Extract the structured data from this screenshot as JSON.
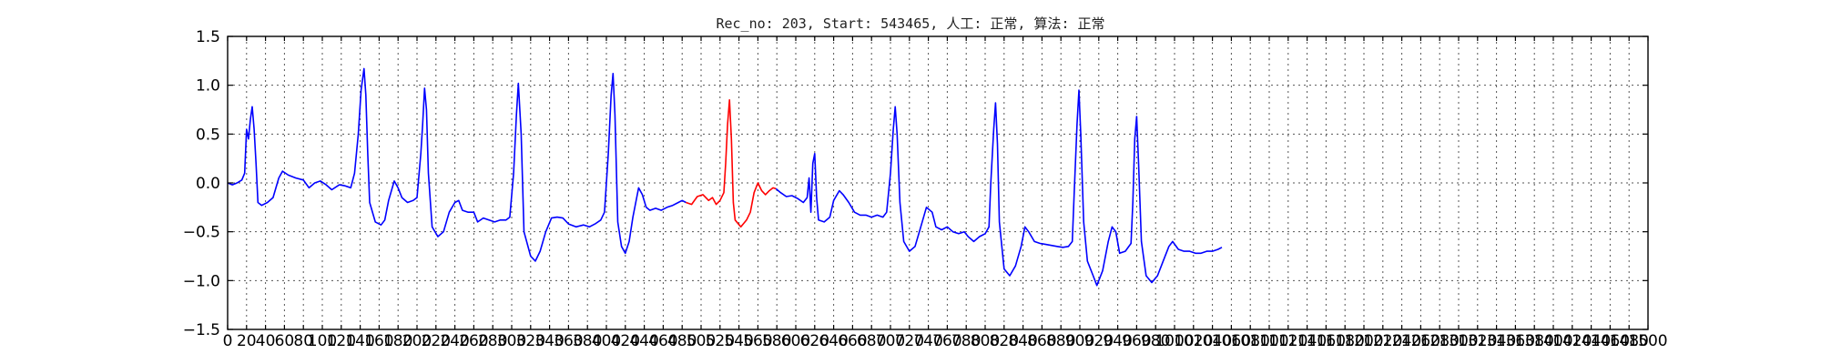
{
  "chart_data": {
    "type": "line",
    "title": "Rec_no: 203, Start: 543465, 人工: 正常, 算法: 正常",
    "xlabel": "",
    "ylabel": "",
    "xlim": [
      0,
      1500
    ],
    "ylim": [
      -1.5,
      1.5
    ],
    "grid": true,
    "xticks": [
      0,
      20,
      40,
      60,
      80,
      100,
      120,
      140,
      160,
      180,
      200,
      220,
      240,
      260,
      280,
      300,
      320,
      340,
      360,
      380,
      400,
      420,
      440,
      460,
      480,
      500,
      520,
      540,
      560,
      580,
      600,
      620,
      640,
      660,
      680,
      700,
      720,
      740,
      760,
      780,
      800,
      820,
      840,
      860,
      880,
      900,
      920,
      940,
      960,
      980,
      1000,
      1020,
      1040,
      1060,
      1080,
      1100,
      1120,
      1140,
      1160,
      1180,
      1200,
      1220,
      1240,
      1260,
      1280,
      1300,
      1320,
      1340,
      1360,
      1380,
      1400,
      1420,
      1440,
      1460,
      1480,
      1500
    ],
    "xtick_labels": [
      "0",
      "20",
      "40",
      "60",
      "80",
      "100",
      "120",
      "140",
      "160",
      "180",
      "200",
      "220",
      "240",
      "260",
      "280",
      "300",
      "320",
      "340",
      "360",
      "380",
      "400",
      "420",
      "440",
      "460",
      "480",
      "500",
      "520",
      "540",
      "560",
      "580",
      "600",
      "620",
      "640",
      "660",
      "680",
      "700",
      "720",
      "740",
      "760",
      "780",
      "800",
      "820",
      "840",
      "860",
      "880",
      "900",
      "920",
      "940",
      "960",
      "980",
      "1000",
      "1020",
      "1040",
      "1060",
      "1080",
      "1100",
      "1120",
      "1140",
      "1160",
      "1180",
      "1200",
      "1220",
      "1240",
      "1260",
      "1280",
      "1300",
      "1320",
      "1340",
      "1360",
      "1380",
      "1400",
      "1420",
      "1440",
      "1460",
      "1480",
      "1500"
    ],
    "yticks": [
      -1.5,
      -1.0,
      -0.5,
      0.0,
      0.5,
      1.0,
      1.5
    ],
    "ytick_labels": [
      "−1.5",
      "−1.0",
      "−0.5",
      "0.0",
      "0.5",
      "1.0",
      "1.5"
    ],
    "series": [
      {
        "color": "#0000ff",
        "points": [
          [
            0,
            0.0
          ],
          [
            5,
            -0.02
          ],
          [
            10,
            0.0
          ],
          [
            15,
            0.03
          ],
          [
            18,
            0.1
          ],
          [
            20,
            0.55
          ],
          [
            22,
            0.45
          ],
          [
            24,
            0.65
          ],
          [
            26,
            0.78
          ],
          [
            28,
            0.55
          ],
          [
            30,
            0.2
          ],
          [
            32,
            -0.2
          ],
          [
            36,
            -0.23
          ],
          [
            42,
            -0.2
          ],
          [
            48,
            -0.15
          ],
          [
            54,
            0.05
          ],
          [
            58,
            0.12
          ],
          [
            64,
            0.08
          ],
          [
            72,
            0.05
          ],
          [
            80,
            0.03
          ],
          [
            86,
            -0.05
          ],
          [
            92,
            0.0
          ],
          [
            98,
            0.02
          ],
          [
            104,
            -0.02
          ],
          [
            110,
            -0.07
          ],
          [
            118,
            -0.02
          ],
          [
            124,
            -0.03
          ],
          [
            130,
            -0.05
          ],
          [
            134,
            0.1
          ],
          [
            138,
            0.5
          ],
          [
            141,
            0.95
          ],
          [
            144,
            1.17
          ],
          [
            146,
            0.9
          ],
          [
            148,
            0.3
          ],
          [
            150,
            -0.2
          ],
          [
            156,
            -0.4
          ],
          [
            162,
            -0.43
          ],
          [
            166,
            -0.38
          ],
          [
            170,
            -0.18
          ],
          [
            176,
            0.02
          ],
          [
            180,
            -0.05
          ],
          [
            184,
            -0.15
          ],
          [
            190,
            -0.2
          ],
          [
            196,
            -0.18
          ],
          [
            200,
            -0.15
          ],
          [
            204,
            0.3
          ],
          [
            206,
            0.6
          ],
          [
            208,
            0.97
          ],
          [
            210,
            0.75
          ],
          [
            212,
            0.1
          ],
          [
            216,
            -0.45
          ],
          [
            222,
            -0.55
          ],
          [
            228,
            -0.5
          ],
          [
            234,
            -0.3
          ],
          [
            240,
            -0.2
          ],
          [
            244,
            -0.18
          ],
          [
            248,
            -0.28
          ],
          [
            254,
            -0.3
          ],
          [
            260,
            -0.3
          ],
          [
            264,
            -0.4
          ],
          [
            270,
            -0.36
          ],
          [
            276,
            -0.38
          ],
          [
            282,
            -0.4
          ],
          [
            288,
            -0.38
          ],
          [
            294,
            -0.38
          ],
          [
            298,
            -0.35
          ],
          [
            302,
            0.1
          ],
          [
            305,
            0.7
          ],
          [
            307,
            1.02
          ],
          [
            310,
            0.5
          ],
          [
            313,
            -0.5
          ],
          [
            320,
            -0.75
          ],
          [
            325,
            -0.8
          ],
          [
            330,
            -0.7
          ],
          [
            336,
            -0.5
          ],
          [
            342,
            -0.36
          ],
          [
            348,
            -0.35
          ],
          [
            354,
            -0.36
          ],
          [
            360,
            -0.42
          ],
          [
            368,
            -0.45
          ],
          [
            376,
            -0.43
          ],
          [
            382,
            -0.45
          ],
          [
            388,
            -0.42
          ],
          [
            394,
            -0.38
          ],
          [
            398,
            -0.3
          ],
          [
            402,
            0.3
          ],
          [
            405,
            0.9
          ],
          [
            407,
            1.12
          ],
          [
            409,
            0.7
          ],
          [
            412,
            -0.4
          ],
          [
            416,
            -0.65
          ],
          [
            420,
            -0.72
          ],
          [
            424,
            -0.6
          ],
          [
            428,
            -0.35
          ],
          [
            434,
            -0.05
          ],
          [
            438,
            -0.12
          ],
          [
            442,
            -0.25
          ],
          [
            446,
            -0.28
          ],
          [
            452,
            -0.26
          ],
          [
            458,
            -0.28
          ],
          [
            464,
            -0.25
          ],
          [
            470,
            -0.23
          ],
          [
            476,
            -0.2
          ],
          [
            480,
            -0.18
          ],
          [
            484,
            -0.2
          ]
        ]
      },
      {
        "color": "#ff0000",
        "points": [
          [
            484,
            -0.2
          ],
          [
            490,
            -0.22
          ],
          [
            496,
            -0.14
          ],
          [
            502,
            -0.12
          ],
          [
            508,
            -0.18
          ],
          [
            512,
            -0.15
          ],
          [
            516,
            -0.22
          ],
          [
            520,
            -0.18
          ],
          [
            524,
            -0.1
          ],
          [
            526,
            0.2
          ],
          [
            528,
            0.6
          ],
          [
            530,
            0.85
          ],
          [
            532,
            0.45
          ],
          [
            534,
            -0.2
          ],
          [
            536,
            -0.38
          ],
          [
            542,
            -0.45
          ],
          [
            548,
            -0.38
          ],
          [
            552,
            -0.3
          ],
          [
            556,
            -0.1
          ],
          [
            560,
            0.0
          ],
          [
            564,
            -0.08
          ],
          [
            568,
            -0.12
          ],
          [
            572,
            -0.08
          ],
          [
            576,
            -0.05
          ],
          [
            579,
            -0.06
          ]
        ]
      },
      {
        "color": "#0000ff",
        "points": [
          [
            579,
            -0.06
          ],
          [
            584,
            -0.1
          ],
          [
            590,
            -0.14
          ],
          [
            596,
            -0.13
          ],
          [
            602,
            -0.16
          ],
          [
            608,
            -0.2
          ],
          [
            612,
            -0.15
          ],
          [
            614,
            0.05
          ],
          [
            616,
            -0.3
          ],
          [
            618,
            0.2
          ],
          [
            620,
            0.3
          ],
          [
            622,
            -0.15
          ],
          [
            624,
            -0.38
          ],
          [
            630,
            -0.4
          ],
          [
            636,
            -0.35
          ],
          [
            640,
            -0.18
          ],
          [
            646,
            -0.08
          ],
          [
            650,
            -0.12
          ],
          [
            656,
            -0.2
          ],
          [
            662,
            -0.3
          ],
          [
            668,
            -0.33
          ],
          [
            674,
            -0.33
          ],
          [
            680,
            -0.35
          ],
          [
            686,
            -0.33
          ],
          [
            692,
            -0.35
          ],
          [
            696,
            -0.3
          ],
          [
            700,
            0.1
          ],
          [
            703,
            0.55
          ],
          [
            705,
            0.78
          ],
          [
            707,
            0.5
          ],
          [
            710,
            -0.2
          ],
          [
            714,
            -0.6
          ],
          [
            720,
            -0.7
          ],
          [
            726,
            -0.65
          ],
          [
            732,
            -0.45
          ],
          [
            738,
            -0.25
          ],
          [
            744,
            -0.3
          ],
          [
            748,
            -0.45
          ],
          [
            754,
            -0.48
          ],
          [
            760,
            -0.45
          ],
          [
            766,
            -0.5
          ],
          [
            772,
            -0.52
          ],
          [
            778,
            -0.5
          ],
          [
            782,
            -0.55
          ],
          [
            788,
            -0.6
          ],
          [
            794,
            -0.55
          ],
          [
            800,
            -0.52
          ],
          [
            804,
            -0.45
          ],
          [
            806,
            0.0
          ],
          [
            809,
            0.55
          ],
          [
            811,
            0.82
          ],
          [
            813,
            0.4
          ],
          [
            815,
            -0.4
          ],
          [
            820,
            -0.88
          ],
          [
            826,
            -0.95
          ],
          [
            832,
            -0.85
          ],
          [
            838,
            -0.65
          ],
          [
            842,
            -0.45
          ],
          [
            846,
            -0.5
          ],
          [
            852,
            -0.6
          ],
          [
            858,
            -0.62
          ],
          [
            864,
            -0.63
          ],
          [
            870,
            -0.64
          ],
          [
            876,
            -0.65
          ],
          [
            882,
            -0.66
          ],
          [
            888,
            -0.65
          ],
          [
            892,
            -0.6
          ],
          [
            894,
            -0.1
          ],
          [
            897,
            0.6
          ],
          [
            899,
            0.95
          ],
          [
            901,
            0.5
          ],
          [
            904,
            -0.4
          ],
          [
            908,
            -0.8
          ],
          [
            914,
            -0.95
          ],
          [
            918,
            -1.05
          ],
          [
            924,
            -0.9
          ],
          [
            930,
            -0.6
          ],
          [
            934,
            -0.45
          ],
          [
            938,
            -0.5
          ],
          [
            942,
            -0.72
          ],
          [
            948,
            -0.7
          ],
          [
            954,
            -0.62
          ],
          [
            956,
            -0.2
          ],
          [
            958,
            0.45
          ],
          [
            960,
            0.68
          ],
          [
            962,
            0.2
          ],
          [
            965,
            -0.6
          ],
          [
            970,
            -0.95
          ],
          [
            976,
            -1.02
          ],
          [
            982,
            -0.95
          ],
          [
            988,
            -0.8
          ],
          [
            994,
            -0.65
          ],
          [
            998,
            -0.6
          ],
          [
            1004,
            -0.68
          ],
          [
            1010,
            -0.7
          ],
          [
            1016,
            -0.7
          ],
          [
            1022,
            -0.72
          ],
          [
            1028,
            -0.72
          ],
          [
            1034,
            -0.7
          ],
          [
            1040,
            -0.7
          ],
          [
            1046,
            -0.68
          ],
          [
            1050,
            -0.66
          ]
        ]
      }
    ]
  }
}
